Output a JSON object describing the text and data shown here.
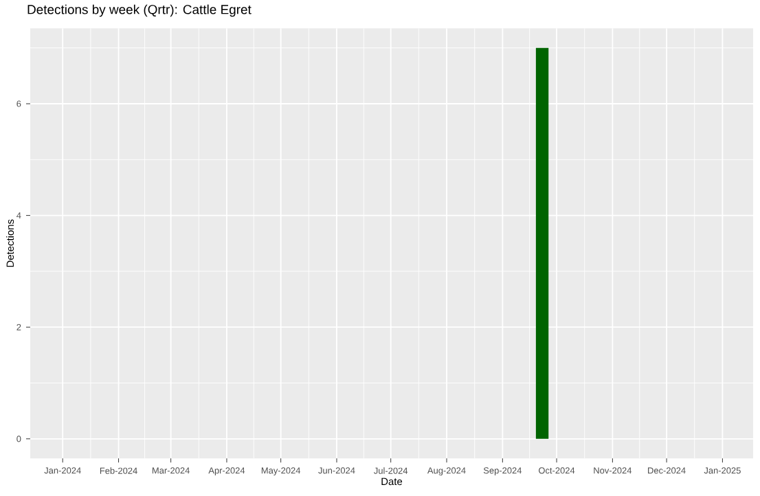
{
  "chart_data": {
    "type": "bar",
    "title": "Detections by week (Qrtr): Cattle Egret",
    "xlabel": "Date",
    "ylabel": "Detections",
    "x": [
      "2024-09-23"
    ],
    "values": [
      7
    ],
    "color": "#006400",
    "xlim": [
      "2023-12-14",
      "2025-01-18"
    ],
    "ylim": [
      -0.35,
      7.35
    ],
    "xticks": [
      {
        "value": "2024-01-01",
        "label": "Jan-2024"
      },
      {
        "value": "2024-02-01",
        "label": "Feb-2024"
      },
      {
        "value": "2024-03-01",
        "label": "Mar-2024"
      },
      {
        "value": "2024-04-01",
        "label": "Apr-2024"
      },
      {
        "value": "2024-05-01",
        "label": "May-2024"
      },
      {
        "value": "2024-06-01",
        "label": "Jun-2024"
      },
      {
        "value": "2024-07-01",
        "label": "Jul-2024"
      },
      {
        "value": "2024-08-01",
        "label": "Aug-2024"
      },
      {
        "value": "2024-09-01",
        "label": "Sep-2024"
      },
      {
        "value": "2024-10-01",
        "label": "Oct-2024"
      },
      {
        "value": "2024-11-01",
        "label": "Nov-2024"
      },
      {
        "value": "2024-12-01",
        "label": "Dec-2024"
      },
      {
        "value": "2025-01-01",
        "label": "Jan-2025"
      }
    ],
    "yticks": [
      0,
      2,
      4,
      6
    ],
    "grid": true
  }
}
